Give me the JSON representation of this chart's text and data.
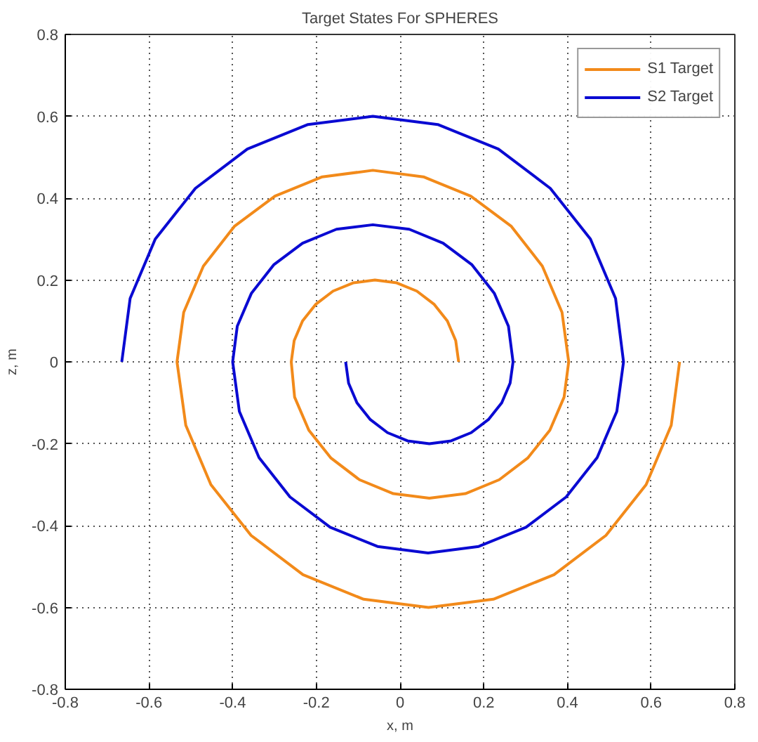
{
  "chart_data": {
    "type": "line",
    "title": "Target States For SPHERES",
    "xlabel": "x, m",
    "ylabel": "z, m",
    "xlim": [
      -0.8,
      0.8
    ],
    "ylim": [
      -0.8,
      0.8
    ],
    "xticks": [
      -0.8,
      -0.6,
      -0.4,
      -0.2,
      0,
      0.2,
      0.4,
      0.6,
      0.8
    ],
    "yticks": [
      -0.8,
      -0.6,
      -0.4,
      -0.2,
      0,
      0.2,
      0.4,
      0.6,
      0.8
    ],
    "grid": true,
    "legend": "top right",
    "line_style": "solid",
    "series": [
      {
        "name": "S1 Target",
        "color": "#f28a1a",
        "x": [
          0.14,
          0.133,
          0.113,
          0.081,
          0.04,
          -0.008,
          -0.06,
          -0.112,
          -0.16,
          -0.201,
          -0.233,
          -0.253,
          -0.26,
          -0.252,
          -0.218,
          -0.165,
          -0.097,
          -0.016,
          0.07,
          0.156,
          0.237,
          0.305,
          0.358,
          0.392,
          0.403,
          0.387,
          0.34,
          0.266,
          0.169,
          0.056,
          -0.065,
          -0.186,
          -0.299,
          -0.396,
          -0.47,
          -0.517,
          -0.533,
          -0.512,
          -0.452,
          -0.356,
          -0.232,
          -0.087,
          0.068,
          0.223,
          0.368,
          0.492,
          0.588,
          0.648,
          0.668
        ],
        "values": [
          0,
          0.052,
          0.1,
          0.141,
          0.173,
          0.193,
          0.2,
          0.193,
          0.173,
          0.141,
          0.1,
          0.052,
          0,
          -0.086,
          -0.167,
          -0.235,
          -0.288,
          -0.322,
          -0.333,
          -0.322,
          -0.288,
          -0.235,
          -0.167,
          -0.086,
          0,
          0.121,
          0.234,
          0.331,
          0.405,
          0.452,
          0.468,
          0.452,
          0.405,
          0.331,
          0.234,
          0.121,
          0,
          -0.155,
          -0.3,
          -0.424,
          -0.52,
          -0.58,
          -0.6,
          -0.58,
          -0.52,
          -0.424,
          -0.3,
          -0.155,
          0
        ]
      },
      {
        "name": "S2 Target",
        "color": "#0a0ad2",
        "x": [
          -0.13,
          -0.123,
          -0.103,
          -0.071,
          -0.03,
          0.018,
          0.07,
          0.122,
          0.17,
          0.211,
          0.243,
          0.263,
          0.27,
          0.259,
          0.225,
          0.172,
          0.103,
          0.022,
          -0.065,
          -0.152,
          -0.233,
          -0.302,
          -0.355,
          -0.389,
          -0.4,
          -0.384,
          -0.337,
          -0.263,
          -0.167,
          -0.054,
          0.067,
          0.188,
          0.301,
          0.397,
          0.471,
          0.518,
          0.534,
          0.515,
          0.455,
          0.359,
          0.235,
          0.09,
          -0.065,
          -0.22,
          -0.365,
          -0.489,
          -0.585,
          -0.645,
          -0.665
        ],
        "values": [
          0,
          -0.052,
          -0.1,
          -0.141,
          -0.173,
          -0.193,
          -0.2,
          -0.193,
          -0.173,
          -0.141,
          -0.1,
          -0.052,
          0,
          0.087,
          0.168,
          0.237,
          0.29,
          0.324,
          0.335,
          0.324,
          0.29,
          0.237,
          0.168,
          0.087,
          0,
          -0.121,
          -0.234,
          -0.33,
          -0.404,
          -0.451,
          -0.467,
          -0.451,
          -0.404,
          -0.33,
          -0.234,
          -0.121,
          0,
          0.155,
          0.3,
          0.424,
          0.52,
          0.58,
          0.6,
          0.58,
          0.52,
          0.424,
          0.3,
          0.155,
          0
        ]
      }
    ]
  }
}
